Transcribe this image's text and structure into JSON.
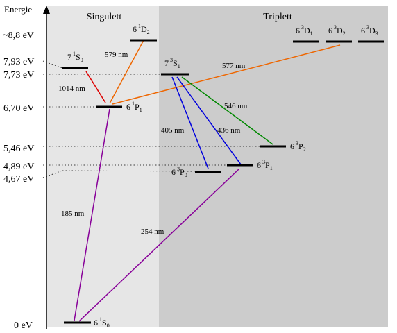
{
  "axis_label": "Energie",
  "columns": {
    "singlet": "Singulett",
    "triplet": "Triplett"
  },
  "energy_labels": [
    "~8,8 eV",
    "7,93 eV",
    "7,73 eV",
    "6,70 eV",
    "5,46 eV",
    "4,89 eV",
    "4,67 eV",
    "0 eV"
  ],
  "levels": [
    {
      "id": "6-1S0",
      "n": "6",
      "mult": "1",
      "L": "S",
      "J": "0"
    },
    {
      "id": "6-1P1",
      "n": "6",
      "mult": "1",
      "L": "P",
      "J": "1"
    },
    {
      "id": "7-1S0",
      "n": "7",
      "mult": "1",
      "L": "S",
      "J": "0"
    },
    {
      "id": "6-1D2",
      "n": "6",
      "mult": "1",
      "L": "D",
      "J": "2"
    },
    {
      "id": "7-3S1",
      "n": "7",
      "mult": "3",
      "L": "S",
      "J": "1"
    },
    {
      "id": "6-3P0",
      "n": "6",
      "mult": "3",
      "L": "P",
      "J": "0"
    },
    {
      "id": "6-3P1",
      "n": "6",
      "mult": "3",
      "L": "P",
      "J": "1"
    },
    {
      "id": "6-3P2",
      "n": "6",
      "mult": "3",
      "L": "P",
      "J": "2"
    },
    {
      "id": "6-3D1",
      "n": "6",
      "mult": "3",
      "L": "D",
      "J": "1"
    },
    {
      "id": "6-3D2",
      "n": "6",
      "mult": "3",
      "L": "D",
      "J": "2"
    },
    {
      "id": "6-3D3",
      "n": "6",
      "mult": "3",
      "L": "D",
      "J": "3"
    }
  ],
  "transitions": [
    {
      "label": "1014 nm",
      "color": "#dd0000"
    },
    {
      "label": "579 nm",
      "color": "#ee6600"
    },
    {
      "label": "577 nm",
      "color": "#ee6600"
    },
    {
      "label": "546 nm",
      "color": "#008800"
    },
    {
      "label": "405 nm",
      "color": "#0000dd"
    },
    {
      "label": "436 nm",
      "color": "#0000dd"
    },
    {
      "label": "185 nm",
      "color": "#880099"
    },
    {
      "label": "254 nm",
      "color": "#880099"
    }
  ]
}
